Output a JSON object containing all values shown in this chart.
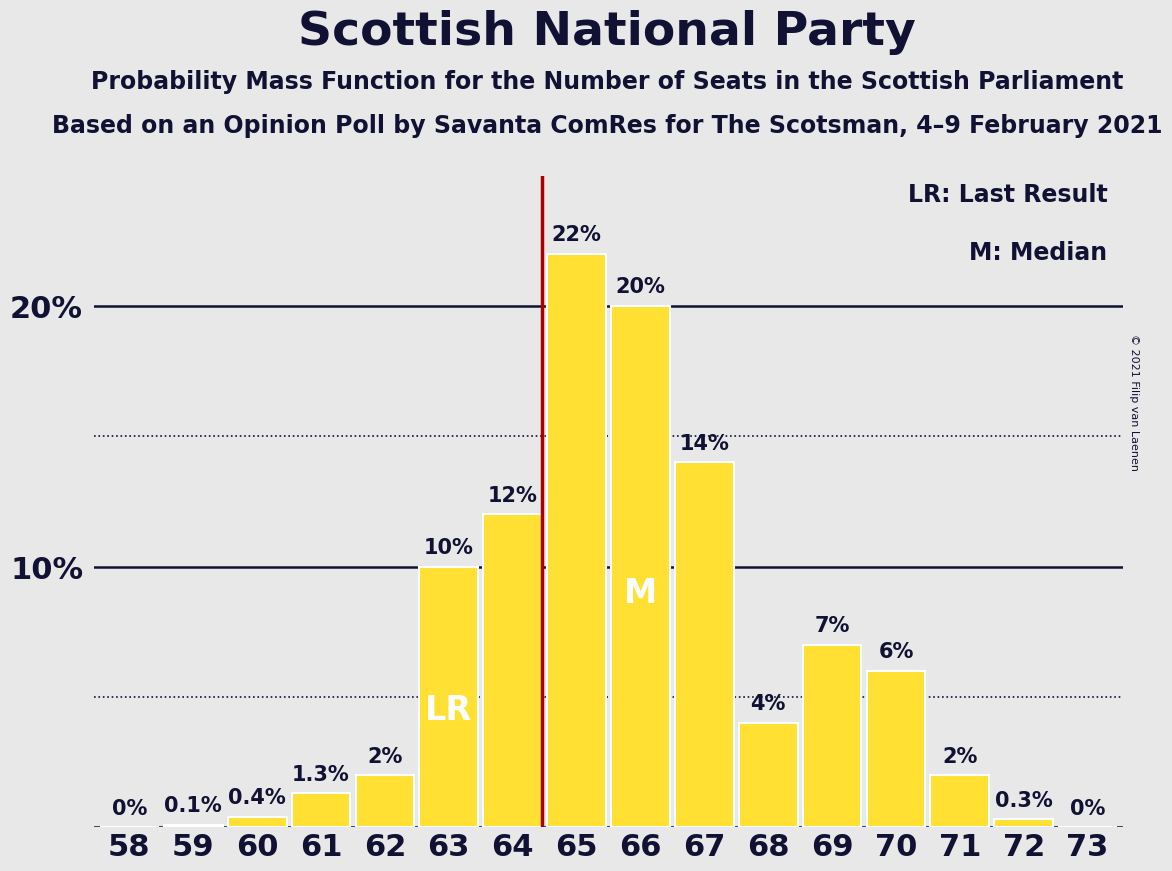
{
  "title": "Scottish National Party",
  "subtitle1": "Probability Mass Function for the Number of Seats in the Scottish Parliament",
  "subtitle2": "Based on an Opinion Poll by Savanta ComRes for The Scotsman, 4–9 February 2021",
  "copyright": "© 2021 Filip van Laenen",
  "seats": [
    58,
    59,
    60,
    61,
    62,
    63,
    64,
    65,
    66,
    67,
    68,
    69,
    70,
    71,
    72,
    73
  ],
  "probabilities": [
    0.0,
    0.1,
    0.4,
    1.3,
    2.0,
    10.0,
    12.0,
    22.0,
    20.0,
    14.0,
    4.0,
    7.0,
    6.0,
    2.0,
    0.3,
    0.0
  ],
  "bar_color": "#FFE033",
  "bar_edge_color": "#FFFFFF",
  "last_result_seat": 64,
  "median_seat": 66,
  "lr_line_color": "#AA0000",
  "background_color": "#E8E8E8",
  "axis_bg_color": "#E8E8E8",
  "title_color": "#111133",
  "label_color": "#111133",
  "solid_line_color": "#111133",
  "dotted_line_color": "#111133",
  "dotted_lines": [
    5.0,
    15.0
  ],
  "legend_text": [
    "LR: Last Result",
    "M: Median"
  ],
  "lr_label": "LR",
  "m_label": "M",
  "title_fontsize": 34,
  "subtitle_fontsize": 17,
  "tick_fontsize": 22,
  "bar_label_fontsize": 15,
  "ylabel_fontsize": 22,
  "legend_fontsize": 17,
  "inbar_fontsize": 24,
  "bar_label_format": [
    "0%",
    "0.1%",
    "0.4%",
    "1.3%",
    "2%",
    "10%",
    "12%",
    "22%",
    "20%",
    "14%",
    "4%",
    "7%",
    "6%",
    "2%",
    "0.3%",
    "0%"
  ]
}
